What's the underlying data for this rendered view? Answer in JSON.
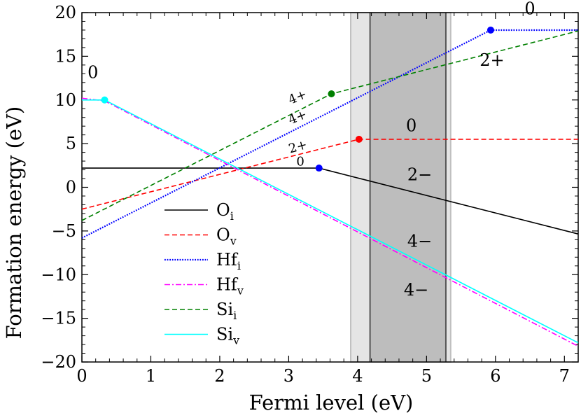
{
  "chart_data": {
    "type": "line",
    "xlabel": "Fermi level (eV)",
    "ylabel": "Formation energy (eV)",
    "xlim": [
      0,
      7.2
    ],
    "ylim": [
      -20,
      20
    ],
    "xticks": [
      0,
      1,
      2,
      3,
      4,
      5,
      6,
      7
    ],
    "yticks": [
      20,
      15,
      10,
      5,
      0,
      -5,
      -10,
      -15,
      -20
    ],
    "yticklabels": [
      "20",
      "15",
      "10",
      "5",
      "0",
      "−5",
      "−10",
      "−15",
      "−20"
    ],
    "legend": {
      "location": "lower-left",
      "entries": [
        {
          "series": "Oi",
          "main": "O",
          "sub": "i"
        },
        {
          "series": "Ov",
          "main": "O",
          "sub": "v"
        },
        {
          "series": "Hfi",
          "main": "Hf",
          "sub": "i"
        },
        {
          "series": "Hfv",
          "main": "Hf",
          "sub": "v"
        },
        {
          "series": "Sii",
          "main": "Si",
          "sub": "i"
        },
        {
          "series": "Siv",
          "main": "Si",
          "sub": "v"
        }
      ]
    },
    "series": [
      {
        "key": "Oi",
        "color": "#000000",
        "style": "solid",
        "x": [
          0,
          3.44,
          7.2
        ],
        "y": [
          2.2,
          2.2,
          -5.35
        ],
        "transitions": [
          {
            "x": 3.44,
            "y": 2.2,
            "color": "#0000ff"
          }
        ]
      },
      {
        "key": "Ov",
        "color": "#ff0000",
        "style": "dashed",
        "x": [
          0,
          4.02,
          7.2
        ],
        "y": [
          -2.5,
          5.5,
          5.5
        ],
        "transitions": [
          {
            "x": 4.02,
            "y": 5.5,
            "color": "#ff0000"
          }
        ]
      },
      {
        "key": "Hfi",
        "color": "#0000ff",
        "style": "dotted",
        "x": [
          0,
          5.93,
          7.2
        ],
        "y": [
          -5.8,
          18.0,
          18.0
        ],
        "transitions": [
          {
            "x": 5.93,
            "y": 18.0,
            "color": "#0000ff"
          }
        ]
      },
      {
        "key": "Hfv",
        "color": "#ff00ff",
        "style": "dashdot",
        "x": [
          0,
          0.33,
          7.2
        ],
        "y": [
          10.2,
          9.9,
          -18.2
        ],
        "transitions": []
      },
      {
        "key": "Sii",
        "color": "#008000",
        "style": "dashed",
        "x": [
          0,
          3.62,
          7.2
        ],
        "y": [
          -3.8,
          10.7,
          17.9
        ],
        "transitions": [
          {
            "x": 3.62,
            "y": 10.7,
            "color": "#008000"
          }
        ]
      },
      {
        "key": "Siv",
        "color": "#00ffff",
        "style": "solid",
        "x": [
          0,
          0.33,
          7.2
        ],
        "y": [
          10.0,
          10.0,
          -17.8
        ],
        "transitions": [
          {
            "x": 0.33,
            "y": 10.0,
            "color": "#00ffff"
          }
        ]
      }
    ],
    "bands": [
      {
        "x0": 3.9,
        "x1": 5.35,
        "fill": "#e5e5e5",
        "stroke": "#bfbfbf"
      },
      {
        "x0": 4.18,
        "x1": 5.28,
        "fill": "#bdbdbd",
        "stroke": "#555555"
      }
    ],
    "annotations": [
      {
        "text": "0",
        "x": 6.5,
        "y": 19.8,
        "size": "large"
      },
      {
        "text": "2+",
        "x": 5.95,
        "y": 13.9,
        "size": "large"
      },
      {
        "text": "0",
        "x": 0.16,
        "y": 12.5,
        "size": "large"
      },
      {
        "text": "4+",
        "x": 3.15,
        "y": 9.9,
        "size": "small",
        "rotate": -22
      },
      {
        "text": "4+",
        "x": 3.15,
        "y": 7.6,
        "size": "small",
        "rotate": -22
      },
      {
        "text": "0",
        "x": 4.78,
        "y": 6.4,
        "size": "large"
      },
      {
        "text": "2+",
        "x": 3.15,
        "y": 4.2,
        "size": "small",
        "rotate": -16
      },
      {
        "text": "0",
        "x": 3.17,
        "y": 2.5,
        "size": "small"
      },
      {
        "text": "2−",
        "x": 4.9,
        "y": 0.8,
        "size": "large"
      },
      {
        "text": "4−",
        "x": 4.9,
        "y": -6.8,
        "size": "large"
      },
      {
        "text": "4−",
        "x": 4.85,
        "y": -12.4,
        "size": "large"
      }
    ]
  }
}
